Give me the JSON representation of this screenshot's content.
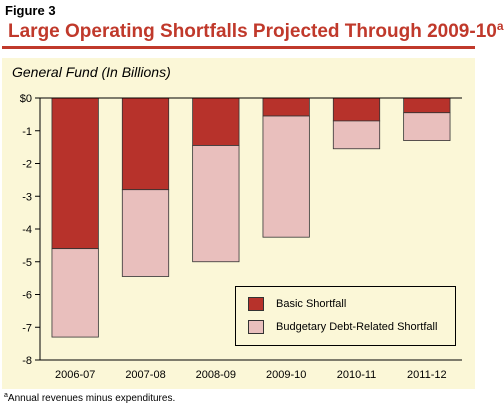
{
  "figure_label": "Figure 3",
  "title": "Large Operating Shortfalls Projected Through 2009-10",
  "title_superscript": "a",
  "subtitle": "General Fund (In Billions)",
  "footnote_marker": "a",
  "footnote": "Annual revenues minus expenditures.",
  "colors": {
    "basic": "#b7322b",
    "debt": "#e9bfbd",
    "title": "#c0392b",
    "panel": "#fbf7d7"
  },
  "chart_data": {
    "type": "bar",
    "stacked": true,
    "categories": [
      "2006-07",
      "2007-08",
      "2008-09",
      "2009-10",
      "2010-11",
      "2011-12"
    ],
    "series": [
      {
        "name": "Basic Shortfall",
        "values": [
          -4.6,
          -2.8,
          -1.45,
          -0.55,
          -0.7,
          -0.45
        ]
      },
      {
        "name": "Budgetary Debt-Related Shortfall",
        "values": [
          -2.7,
          -2.65,
          -3.55,
          -3.7,
          -0.85,
          -0.85
        ]
      }
    ],
    "y_ticks": [
      "$0",
      "-1",
      "-2",
      "-3",
      "-4",
      "-5",
      "-6",
      "-7",
      "-8"
    ],
    "ylim": [
      -8,
      0
    ],
    "grid": false,
    "legend_position": "bottom-right"
  }
}
